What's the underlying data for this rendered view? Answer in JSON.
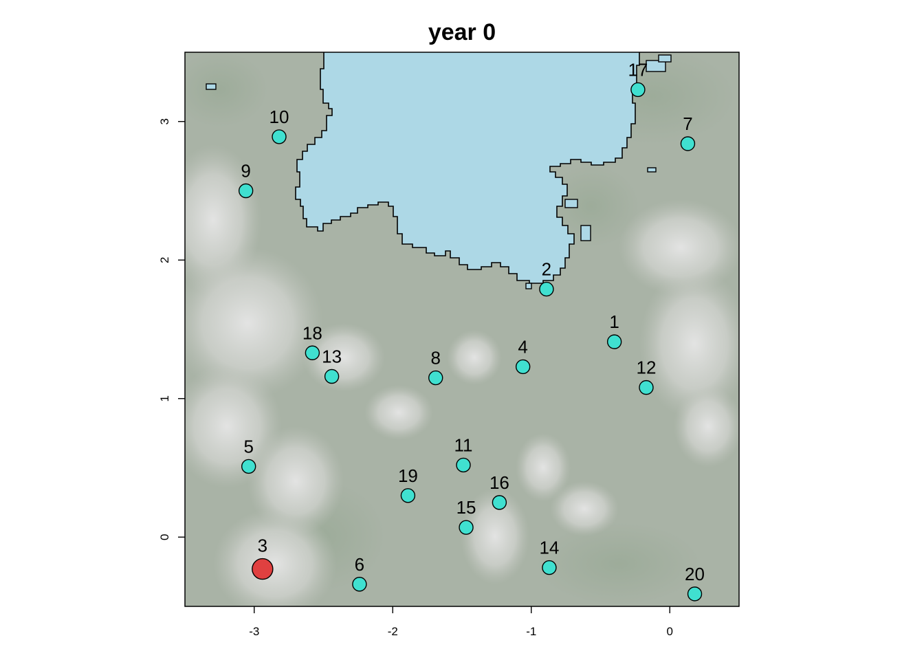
{
  "chart_data": {
    "type": "scatter",
    "title": "year 0",
    "xlabel": "",
    "ylabel": "",
    "xlim": [
      -3.5,
      0.5
    ],
    "ylim": [
      -0.5,
      3.5
    ],
    "x_ticks": [
      -3,
      -2,
      -1,
      0
    ],
    "y_ticks": [
      0,
      1,
      2,
      3
    ],
    "grid": false,
    "legend": "none",
    "background": "terrain map with water body",
    "colors": {
      "point_default": "#40e0d0",
      "point_highlight": "#e04040",
      "point_edge": "#000000",
      "water": "#add8e6",
      "land": "#a9b3a6",
      "highlands": "#d9d9d9"
    },
    "points": [
      {
        "label": "1",
        "x": -0.4,
        "y": 1.41,
        "highlight": false
      },
      {
        "label": "2",
        "x": -0.89,
        "y": 1.79,
        "highlight": false
      },
      {
        "label": "3",
        "x": -2.94,
        "y": -0.23,
        "highlight": true
      },
      {
        "label": "4",
        "x": -1.06,
        "y": 1.23,
        "highlight": false
      },
      {
        "label": "5",
        "x": -3.04,
        "y": 0.51,
        "highlight": false
      },
      {
        "label": "6",
        "x": -2.24,
        "y": -0.34,
        "highlight": false
      },
      {
        "label": "7",
        "x": 0.13,
        "y": 2.84,
        "highlight": false
      },
      {
        "label": "8",
        "x": -1.69,
        "y": 1.15,
        "highlight": false
      },
      {
        "label": "9",
        "x": -3.06,
        "y": 2.5,
        "highlight": false
      },
      {
        "label": "10",
        "x": -2.82,
        "y": 2.89,
        "highlight": false
      },
      {
        "label": "11",
        "x": -1.49,
        "y": 0.52,
        "highlight": false
      },
      {
        "label": "12",
        "x": -0.17,
        "y": 1.08,
        "highlight": false
      },
      {
        "label": "13",
        "x": -2.44,
        "y": 1.16,
        "highlight": false
      },
      {
        "label": "14",
        "x": -0.87,
        "y": -0.22,
        "highlight": false
      },
      {
        "label": "15",
        "x": -1.47,
        "y": 0.07,
        "highlight": false
      },
      {
        "label": "16",
        "x": -1.23,
        "y": 0.25,
        "highlight": false
      },
      {
        "label": "17",
        "x": -0.23,
        "y": 3.23,
        "highlight": false
      },
      {
        "label": "18",
        "x": -2.58,
        "y": 1.33,
        "highlight": false
      },
      {
        "label": "19",
        "x": -1.89,
        "y": 0.3,
        "highlight": false
      },
      {
        "label": "20",
        "x": 0.18,
        "y": -0.41,
        "highlight": false
      }
    ]
  }
}
